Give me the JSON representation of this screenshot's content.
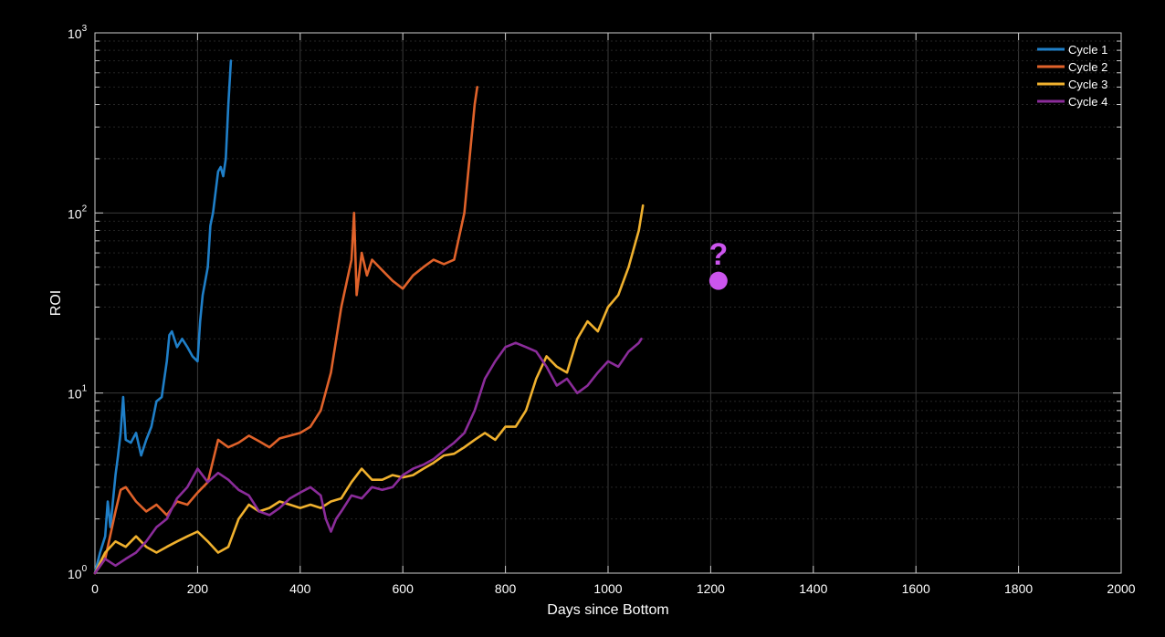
{
  "chart_data": {
    "type": "line",
    "xlabel": "Days since Bottom",
    "ylabel": "ROI",
    "xlim": [
      0,
      2000
    ],
    "ylim": [
      1,
      1000
    ],
    "yscale": "log",
    "x_ticks": [
      "0",
      "200",
      "400",
      "600",
      "800",
      "1000",
      "1200",
      "1400",
      "1600",
      "1800",
      "2000"
    ],
    "y_ticks": [
      {
        "base": "10",
        "exp": "0"
      },
      {
        "base": "10",
        "exp": "1"
      },
      {
        "base": "10",
        "exp": "2"
      },
      {
        "base": "10",
        "exp": "3"
      }
    ],
    "grid": true,
    "legend_position": "top-right",
    "background": "#000000",
    "series": [
      {
        "name": "Cycle 1",
        "color": "#1f7fc8",
        "x": [
          0,
          10,
          20,
          25,
          30,
          40,
          45,
          50,
          55,
          60,
          70,
          80,
          90,
          100,
          110,
          120,
          130,
          140,
          145,
          150,
          160,
          170,
          180,
          190,
          200,
          205,
          210,
          220,
          225,
          230,
          240,
          245,
          250,
          255,
          260,
          265
        ],
        "y": [
          1,
          1.3,
          1.6,
          2.5,
          1.8,
          3.5,
          4.5,
          6,
          9.5,
          5.5,
          5.3,
          6,
          4.5,
          5.5,
          6.5,
          9,
          9.5,
          15,
          21,
          22,
          18,
          20,
          18,
          16,
          15,
          25,
          35,
          50,
          85,
          100,
          170,
          180,
          160,
          200,
          400,
          700
        ]
      },
      {
        "name": "Cycle 2",
        "color": "#e0622a",
        "x": [
          0,
          20,
          40,
          50,
          60,
          80,
          100,
          120,
          140,
          160,
          180,
          200,
          220,
          240,
          260,
          280,
          300,
          320,
          340,
          360,
          380,
          400,
          420,
          440,
          460,
          480,
          500,
          505,
          510,
          520,
          530,
          540,
          560,
          580,
          600,
          620,
          640,
          660,
          680,
          700,
          720,
          740,
          745
        ],
        "y": [
          1,
          1.2,
          2.2,
          2.9,
          3.0,
          2.5,
          2.2,
          2.4,
          2.1,
          2.5,
          2.4,
          2.8,
          3.2,
          5.5,
          5.0,
          5.3,
          5.8,
          5.4,
          5.0,
          5.6,
          5.8,
          6.0,
          6.5,
          8.0,
          13,
          30,
          55,
          100,
          35,
          60,
          45,
          55,
          48,
          42,
          38,
          45,
          50,
          55,
          52,
          55,
          100,
          400,
          500
        ]
      },
      {
        "name": "Cycle 3",
        "color": "#f0b12e",
        "x": [
          0,
          20,
          40,
          60,
          80,
          100,
          120,
          140,
          160,
          180,
          200,
          220,
          240,
          260,
          280,
          300,
          320,
          340,
          360,
          380,
          400,
          420,
          440,
          460,
          480,
          500,
          520,
          540,
          560,
          580,
          600,
          620,
          640,
          660,
          680,
          700,
          720,
          740,
          760,
          780,
          800,
          820,
          840,
          860,
          880,
          900,
          920,
          940,
          960,
          980,
          1000,
          1020,
          1040,
          1060,
          1068
        ],
        "y": [
          1,
          1.3,
          1.5,
          1.4,
          1.6,
          1.4,
          1.3,
          1.4,
          1.5,
          1.6,
          1.7,
          1.5,
          1.3,
          1.4,
          2.0,
          2.4,
          2.2,
          2.3,
          2.5,
          2.4,
          2.3,
          2.4,
          2.3,
          2.5,
          2.6,
          3.2,
          3.8,
          3.3,
          3.3,
          3.5,
          3.4,
          3.5,
          3.8,
          4.1,
          4.5,
          4.6,
          5.0,
          5.5,
          6.0,
          5.5,
          6.5,
          6.5,
          8.0,
          12,
          16,
          14,
          13,
          20,
          25,
          22,
          30,
          35,
          50,
          80,
          110
        ]
      },
      {
        "name": "Cycle 4",
        "color": "#8b2c9a",
        "x": [
          0,
          20,
          40,
          60,
          80,
          100,
          120,
          140,
          160,
          180,
          200,
          220,
          240,
          260,
          280,
          300,
          320,
          340,
          360,
          380,
          400,
          420,
          440,
          450,
          460,
          470,
          480,
          500,
          520,
          540,
          560,
          580,
          600,
          620,
          640,
          660,
          680,
          700,
          720,
          740,
          760,
          780,
          800,
          820,
          840,
          860,
          880,
          900,
          920,
          940,
          960,
          980,
          1000,
          1020,
          1040,
          1060,
          1065
        ],
        "y": [
          1,
          1.2,
          1.1,
          1.2,
          1.3,
          1.5,
          1.8,
          2.0,
          2.6,
          3.0,
          3.8,
          3.2,
          3.6,
          3.3,
          2.9,
          2.7,
          2.2,
          2.1,
          2.3,
          2.6,
          2.8,
          3.0,
          2.7,
          2.0,
          1.7,
          2.0,
          2.2,
          2.7,
          2.6,
          3.0,
          2.9,
          3.0,
          3.5,
          3.8,
          4.0,
          4.3,
          4.8,
          5.3,
          6.0,
          8.0,
          12,
          15,
          18,
          19,
          18,
          17,
          14,
          11,
          12,
          10,
          11,
          13,
          15,
          14,
          17,
          19,
          20
        ]
      }
    ],
    "annotations": [
      {
        "text": "?",
        "x": 1215,
        "y": 58,
        "color": "#cc55ee"
      },
      {
        "marker": "circle",
        "x": 1215,
        "y": 42,
        "color": "#cc55ee"
      }
    ]
  }
}
